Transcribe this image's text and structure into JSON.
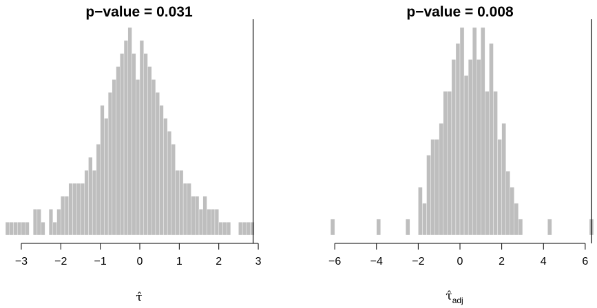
{
  "chart_data": [
    {
      "type": "bar",
      "title": "p−value = 0.031",
      "xlabel": "τ̂",
      "xlim": [
        -3.4,
        3.4
      ],
      "xticks": [
        -3,
        -2,
        -1,
        0,
        1,
        2,
        3
      ],
      "xtick_labels": [
        "−3",
        "−2",
        "−1",
        "0",
        "1",
        "2",
        "3"
      ],
      "reference_line_x": 2.87,
      "bin_width": 0.1,
      "bin_start": -3.4,
      "counts": [
        1,
        1,
        1,
        1,
        1,
        1,
        0,
        2,
        2,
        1,
        0,
        2,
        1,
        2,
        3,
        3,
        4,
        4,
        4,
        4,
        5,
        6,
        5,
        7,
        10,
        9,
        11,
        12,
        13,
        14,
        15,
        16,
        14,
        12,
        15,
        14,
        13,
        12,
        11,
        10,
        9,
        8,
        7,
        5,
        5,
        4,
        4,
        3,
        3,
        2,
        3,
        2,
        2,
        2,
        1,
        1,
        1,
        0,
        0,
        1,
        1,
        1,
        1
      ]
    },
    {
      "type": "bar",
      "title": "p−value = 0.008",
      "xlabel": "τ̂",
      "xlabel_sub": "adj",
      "xlim": [
        -6.4,
        6.4
      ],
      "xticks": [
        -6,
        -4,
        -2,
        0,
        2,
        4,
        6
      ],
      "xtick_labels": [
        "−6",
        "−4",
        "−2",
        "0",
        "2",
        "4",
        "6"
      ],
      "reference_line_x": 6.3,
      "bin_width": 0.2,
      "bin_start": -6.4,
      "counts": [
        0,
        1,
        0,
        0,
        0,
        0,
        0,
        0,
        0,
        0,
        0,
        0,
        1,
        0,
        0,
        0,
        0,
        0,
        0,
        1,
        0,
        0,
        3,
        2,
        5,
        6,
        6,
        7,
        9,
        9,
        11,
        12,
        13,
        10,
        11,
        13,
        11,
        13,
        9,
        12,
        9,
        6,
        7,
        4,
        3,
        2,
        1,
        0,
        0,
        0,
        0,
        0,
        0,
        1,
        0,
        0,
        0,
        0,
        0,
        0,
        0,
        0,
        0,
        1
      ]
    }
  ]
}
